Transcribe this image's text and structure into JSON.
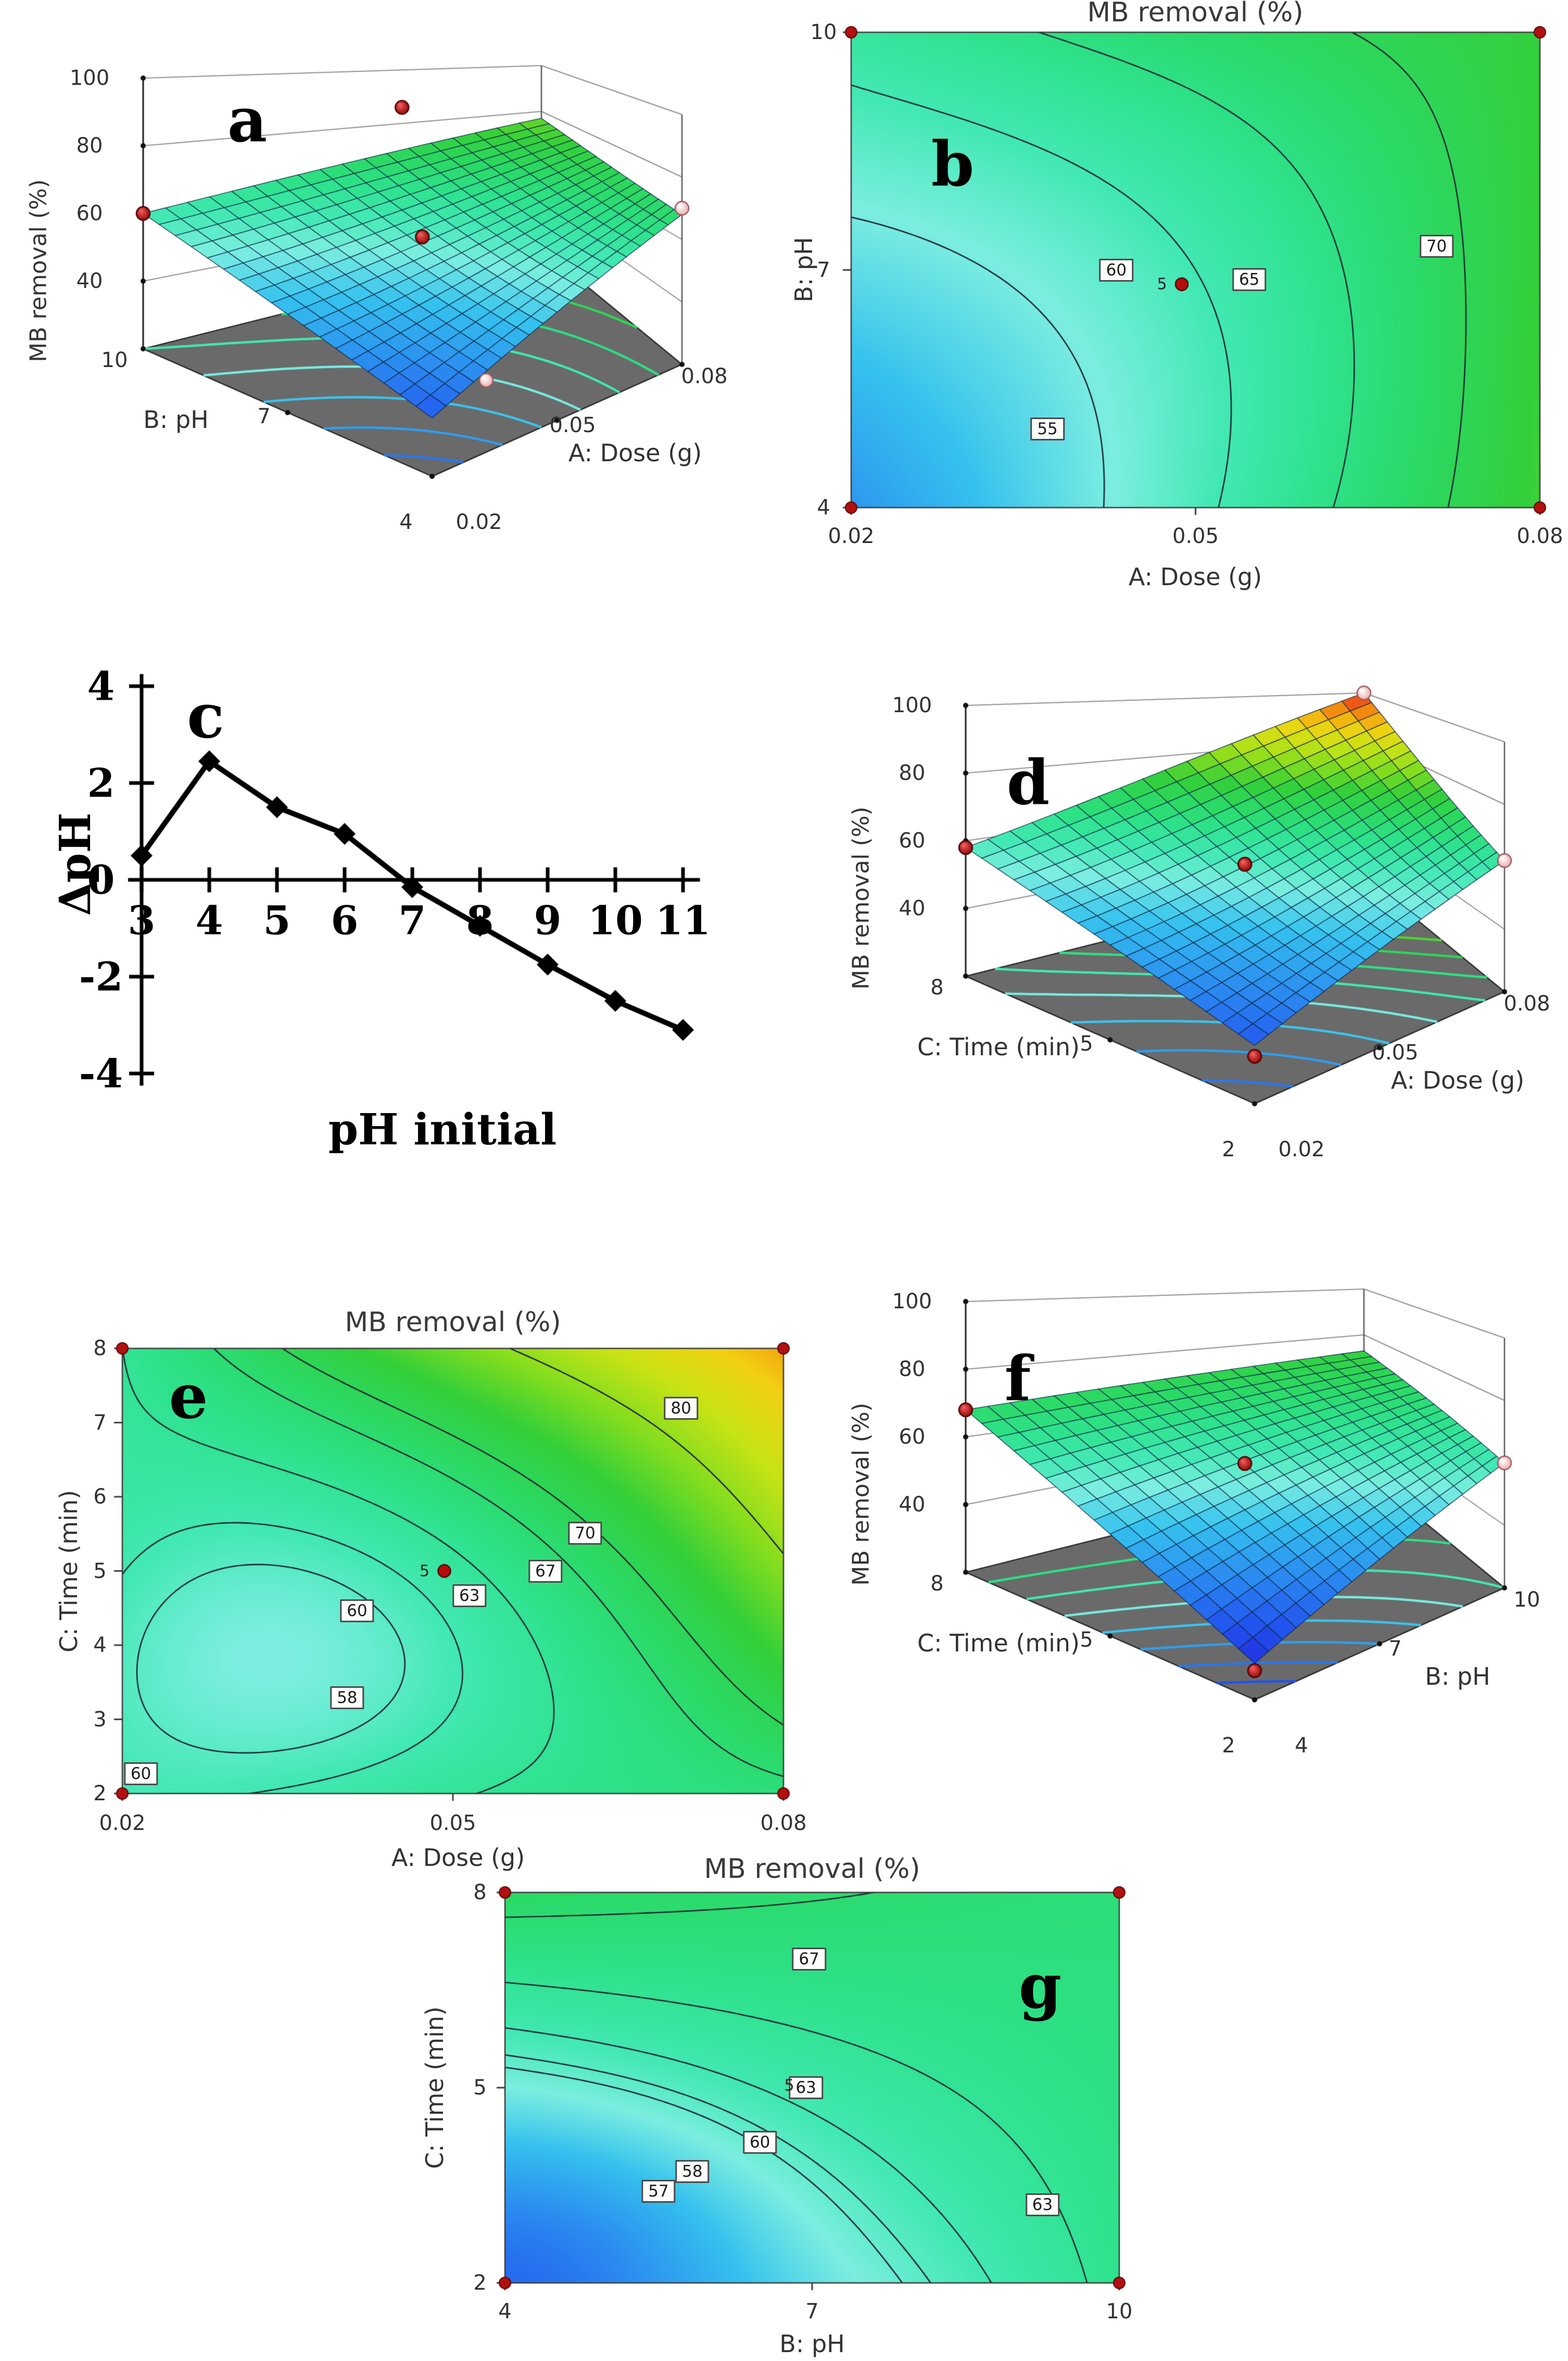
{
  "colors": {
    "background": "#ffffff",
    "floor": "#6a6a6a",
    "box_edge": "#2b2b2b",
    "wall_grid": "#8f8f8f",
    "mesh_line": "#13304a",
    "contour_line": "#1d2733",
    "design_point_red": "#b60d0d",
    "design_point_pink": "#f5cfcf",
    "text": "#333333"
  },
  "colormap_range": [
    28,
    100
  ],
  "colormap": [
    [
      0.0,
      "#2420d8"
    ],
    [
      0.1,
      "#2253ee"
    ],
    [
      0.2,
      "#2b8bf0"
    ],
    [
      0.3,
      "#35c1ee"
    ],
    [
      0.38,
      "#7ceee0"
    ],
    [
      0.44,
      "#43e8b4"
    ],
    [
      0.5,
      "#2ee28d"
    ],
    [
      0.56,
      "#2bd965"
    ],
    [
      0.63,
      "#33cf3a"
    ],
    [
      0.7,
      "#7fdc20"
    ],
    [
      0.78,
      "#c8e315"
    ],
    [
      0.85,
      "#f2d012"
    ],
    [
      0.91,
      "#f29310"
    ],
    [
      0.96,
      "#ef5514"
    ],
    [
      1.0,
      "#e61d10"
    ]
  ],
  "chart_data": [
    {
      "id": "a",
      "type": "surface3d",
      "letter": "a",
      "z_axis": {
        "label": "MB removal (%)",
        "ticks": [
          "100",
          "80",
          "60",
          "40"
        ]
      },
      "left_axis": {
        "label": "B: pH",
        "ticks": [
          "10",
          "7",
          "4"
        ]
      },
      "right_axis": {
        "label": "A: Dose  (g)",
        "ticks": [
          "0.02",
          "0.05",
          "0.08"
        ]
      },
      "surface": {
        "front": 36,
        "right": 68,
        "left": 60,
        "back": 77,
        "center": 57,
        "bend": 4
      },
      "floor_levels": [
        40,
        45,
        50,
        55,
        60,
        65,
        70
      ],
      "design_points": [
        {
          "u": 0.0,
          "v": 1.0,
          "z": 60,
          "style": "red"
        },
        {
          "u": 0.65,
          "v": 1.0,
          "z": 86,
          "style": "red"
        },
        {
          "u": 0.45,
          "v": 0.55,
          "z": 59,
          "style": "red"
        },
        {
          "u": 1.0,
          "v": 0.0,
          "z": 70,
          "style": "pink"
        },
        {
          "u": 0.5,
          "v": 0.33,
          "z": 20,
          "style": "pink"
        }
      ]
    },
    {
      "id": "b",
      "type": "contour2d",
      "letter": "b",
      "title": "MB removal (%)",
      "x_axis": {
        "label": "A: Dose  (g)",
        "ticks": [
          "0.02",
          "0.05",
          "0.08"
        ]
      },
      "y_axis": {
        "label": "B: pH",
        "ticks": [
          "4",
          "7",
          "10"
        ]
      },
      "field": {
        "bl": 44,
        "br": 74,
        "tl": 62,
        "tr": 73,
        "center": 60,
        "blobs": []
      },
      "levels": [
        55,
        60,
        65,
        70
      ],
      "contour_labels": [
        {
          "text": "55",
          "x": 0.285,
          "y": 0.835
        },
        {
          "text": "60",
          "x": 0.385,
          "y": 0.5
        },
        {
          "text": "65",
          "x": 0.578,
          "y": 0.52
        },
        {
          "text": "70",
          "x": 0.85,
          "y": 0.45
        }
      ],
      "center_point": {
        "label": "5",
        "x": 0.48,
        "y": 0.53
      }
    },
    {
      "id": "c",
      "type": "line",
      "letter": "c",
      "x_label": "pH initial",
      "y_label": "ΔpH",
      "x_ticks": [
        "3",
        "4",
        "5",
        "6",
        "7",
        "8",
        "9",
        "10",
        "11"
      ],
      "y_ticks": [
        "4",
        "2",
        "0",
        "-2",
        "-4"
      ],
      "x": [
        3,
        4,
        5,
        6,
        7,
        8,
        9,
        10,
        11
      ],
      "y": [
        0.5,
        2.45,
        1.5,
        0.95,
        -0.15,
        -0.95,
        -1.75,
        -2.5,
        -3.1
      ],
      "xlim": [
        3,
        11
      ],
      "ylim": [
        -4,
        4
      ]
    },
    {
      "id": "d",
      "type": "surface3d",
      "letter": "d",
      "z_axis": {
        "label": "MB removal (%)",
        "ticks": [
          "100",
          "80",
          "60",
          "40"
        ]
      },
      "left_axis": {
        "label": "C: Time  (min)",
        "ticks": [
          "8",
          "5",
          "2"
        ]
      },
      "right_axis": {
        "label": "A: Dose  (g)",
        "ticks": [
          "0.02",
          "0.05",
          "0.08"
        ]
      },
      "surface": {
        "front": 36,
        "right": 62,
        "left": 58,
        "back": 100,
        "center": 58,
        "bend": 16
      },
      "floor_levels": [
        40,
        45,
        50,
        55,
        60,
        65,
        70,
        75
      ],
      "design_points": [
        {
          "u": 0.0,
          "v": 1.0,
          "z": 58,
          "style": "red"
        },
        {
          "u": 0.45,
          "v": 0.55,
          "z": 59,
          "style": "red"
        },
        {
          "u": 0.0,
          "v": 0.0,
          "z": 33,
          "style": "red"
        },
        {
          "u": 1.0,
          "v": 1.0,
          "z": 100,
          "style": "pink"
        },
        {
          "u": 1.0,
          "v": 0.0,
          "z": 62,
          "style": "pink"
        }
      ]
    },
    {
      "id": "e",
      "type": "contour2d",
      "letter": "e",
      "title": "MB removal (%)",
      "x_axis": {
        "label": "A: Dose  (g)",
        "ticks": [
          "0.02",
          "0.05",
          "0.08"
        ]
      },
      "y_axis": {
        "label": "C: Time  (min)",
        "ticks": [
          "2",
          "3",
          "4",
          "5",
          "6",
          "7",
          "8"
        ]
      },
      "field": {
        "bl": 60.5,
        "br": 66,
        "tl": 63,
        "tr": 92,
        "center": 62,
        "blobs": [
          {
            "amp": -4.5,
            "cx": 0.21,
            "cy": 0.3,
            "s": 0.085
          }
        ]
      },
      "levels": [
        58,
        60,
        63,
        67,
        70,
        80
      ],
      "contour_labels": [
        {
          "text": "60",
          "x": 0.028,
          "y": 0.955
        },
        {
          "text": "58",
          "x": 0.34,
          "y": 0.785
        },
        {
          "text": "60",
          "x": 0.355,
          "y": 0.59
        },
        {
          "text": "63",
          "x": 0.525,
          "y": 0.555
        },
        {
          "text": "67",
          "x": 0.64,
          "y": 0.5
        },
        {
          "text": "70",
          "x": 0.7,
          "y": 0.415
        },
        {
          "text": "80",
          "x": 0.845,
          "y": 0.135
        }
      ],
      "center_point": {
        "label": "5",
        "x": 0.487,
        "y": 0.5
      }
    },
    {
      "id": "f",
      "type": "surface3d",
      "letter": "f",
      "z_axis": {
        "label": "MB removal (%)",
        "ticks": [
          "100",
          "80",
          "60",
          "40"
        ]
      },
      "left_axis": {
        "label": "C: Time  (min)",
        "ticks": [
          "8",
          "5",
          "2"
        ]
      },
      "right_axis": {
        "label": "B: pH",
        "ticks": [
          "4",
          "7",
          "10"
        ]
      },
      "surface": {
        "front": 30,
        "right": 60,
        "left": 68,
        "back": 73,
        "center": 58,
        "bend": 0
      },
      "floor_levels": [
        35,
        40,
        45,
        50,
        55,
        60,
        65
      ],
      "design_points": [
        {
          "u": 0.0,
          "v": 1.0,
          "z": 68,
          "style": "red"
        },
        {
          "u": 0.45,
          "v": 0.55,
          "z": 58,
          "style": "red"
        },
        {
          "u": 0.0,
          "v": 0.0,
          "z": 28,
          "style": "red"
        },
        {
          "u": 1.0,
          "v": 0.0,
          "z": 60,
          "style": "pink"
        }
      ]
    },
    {
      "id": "g",
      "type": "contour2d",
      "letter": "g",
      "title": "MB removal (%)",
      "x_axis": {
        "label": "B: pH",
        "ticks": [
          "4",
          "7",
          "10"
        ]
      },
      "y_axis": {
        "label": "C: Time  (min)",
        "ticks": [
          "2",
          "5",
          "8"
        ]
      },
      "field": {
        "bl": 45,
        "br": 64,
        "tl": 68.5,
        "tr": 66,
        "center": 61,
        "blobs": [
          {
            "amp": -8,
            "cx": 0.08,
            "cy": 0.1,
            "s": 0.1
          }
        ]
      },
      "levels": [
        57,
        58,
        60,
        63,
        67
      ],
      "contour_labels": [
        {
          "text": "67",
          "x": 0.495,
          "y": 0.17
        },
        {
          "text": "63",
          "x": 0.49,
          "y": 0.5
        },
        {
          "text": "60",
          "x": 0.415,
          "y": 0.64
        },
        {
          "text": "58",
          "x": 0.305,
          "y": 0.715
        },
        {
          "text": "57",
          "x": 0.25,
          "y": 0.765
        },
        {
          "text": "63",
          "x": 0.875,
          "y": 0.8
        }
      ],
      "center_point": {
        "label": "5",
        "x": 0.495,
        "y": 0.495
      }
    }
  ]
}
